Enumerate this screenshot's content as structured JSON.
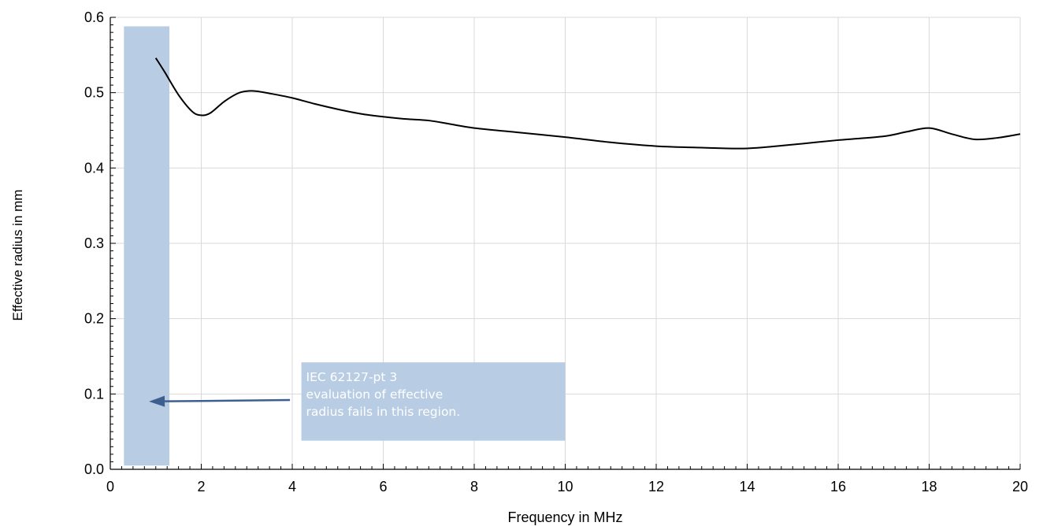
{
  "chart_data": {
    "type": "line",
    "title": "",
    "xlabel": "Frequency in MHz",
    "ylabel": "Effective  radius in mm",
    "xlim": [
      0,
      20
    ],
    "ylim": [
      0,
      0.6
    ],
    "xticks": [
      "0",
      "2",
      "4",
      "6",
      "8",
      "10",
      "12",
      "14",
      "16",
      "18",
      "20"
    ],
    "yticks": [
      "0.0",
      "0.1",
      "0.2",
      "0.3",
      "0.4",
      "0.5",
      "0.6"
    ],
    "grid": true,
    "series": [
      {
        "x": [
          1.0,
          1.2,
          1.5,
          1.8,
          2.0,
          2.2,
          2.5,
          2.8,
          3.0,
          3.2,
          3.5,
          4.0,
          4.5,
          5.0,
          5.5,
          6.0,
          6.5,
          7.0,
          7.5,
          8.0,
          9.0,
          10.0,
          11.0,
          12.0,
          13.0,
          14.0,
          15.0,
          16.0,
          17.0,
          17.5,
          18.0,
          18.5,
          19.0,
          19.5,
          20.0
        ],
        "y": [
          0.546,
          0.527,
          0.497,
          0.475,
          0.47,
          0.473,
          0.488,
          0.499,
          0.502,
          0.502,
          0.499,
          0.493,
          0.485,
          0.478,
          0.472,
          0.468,
          0.465,
          0.463,
          0.458,
          0.453,
          0.447,
          0.441,
          0.434,
          0.429,
          0.427,
          0.426,
          0.431,
          0.437,
          0.442,
          0.448,
          0.453,
          0.445,
          0.438,
          0.44,
          0.445
        ],
        "color": "#000000"
      }
    ],
    "shaded_region": {
      "x": [
        0.3,
        1.3
      ],
      "y": [
        0.005,
        0.588
      ],
      "color": "#b8cce4"
    },
    "annotation": {
      "lines": [
        "IEC 62127-pt 3",
        "evaluation  of effective",
        "radius fails in this region."
      ],
      "x": [
        4.2,
        10.0
      ],
      "y": [
        0.038,
        0.142
      ],
      "box_color": "#b8cce4",
      "arrow_from": [
        3.95,
        0.092
      ],
      "arrow_to": [
        0.85,
        0.09
      ],
      "arrow_color": "#3d5f8f"
    }
  }
}
